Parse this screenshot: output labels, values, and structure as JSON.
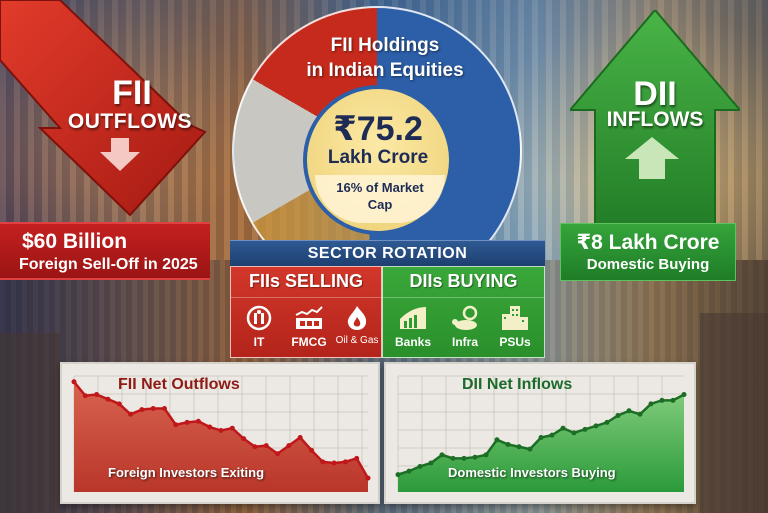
{
  "fii_panel": {
    "title": "FII",
    "subtitle": "OUTFLOWS",
    "amount": "$60 Billion",
    "description": "Foreign Sell-Off in 2025",
    "color": "#c62a1c"
  },
  "dii_panel": {
    "title": "DII",
    "subtitle": "INFLOWS",
    "amount": "₹8 Lakh Crore",
    "description": "Domestic Buying",
    "color": "#2e9a33"
  },
  "holdings": {
    "title_line1": "FII Holdings",
    "title_line2": "in Indian Equities",
    "value": "₹75.2",
    "unit": "Lakh Crore",
    "note_line1": "16% of Market",
    "note_line2": "Cap"
  },
  "sector_rotation": {
    "header": "SECTOR ROTATION",
    "selling": {
      "title": "FIIs SELLING",
      "items": [
        {
          "label": "IT",
          "icon": "chip-icon"
        },
        {
          "label": "FMCG",
          "icon": "factory-icon"
        },
        {
          "label": "Oil & Gas",
          "icon": "flame-icon"
        }
      ]
    },
    "buying": {
      "title": "DIIs BUYING",
      "items": [
        {
          "label": "Banks",
          "icon": "bank-growth-icon"
        },
        {
          "label": "Infra",
          "icon": "infrastructure-icon"
        },
        {
          "label": "PSUs",
          "icon": "buildings-icon"
        }
      ]
    }
  },
  "chart_data": [
    {
      "type": "area",
      "title": "FII Net Outflows",
      "annotation": "Foreign Investors Exiting",
      "xlabel": "",
      "ylabel": "",
      "grid": true,
      "color": "#c62a1c",
      "values": [
        95,
        83,
        84,
        80,
        76,
        67,
        71,
        72,
        72,
        58,
        60,
        61,
        56,
        53,
        55,
        46,
        39,
        40,
        33,
        40,
        47,
        36,
        26,
        25,
        26,
        29,
        12
      ]
    },
    {
      "type": "area",
      "title": "DII Net Inflows",
      "annotation": "Domestic Investors Buying",
      "xlabel": "",
      "ylabel": "",
      "grid": true,
      "color": "#2e9a33",
      "values": [
        15,
        18,
        22,
        25,
        32,
        29,
        29,
        30,
        32,
        45,
        41,
        39,
        37,
        47,
        49,
        55,
        51,
        54,
        57,
        60,
        66,
        70,
        67,
        76,
        79,
        79,
        84
      ]
    }
  ]
}
